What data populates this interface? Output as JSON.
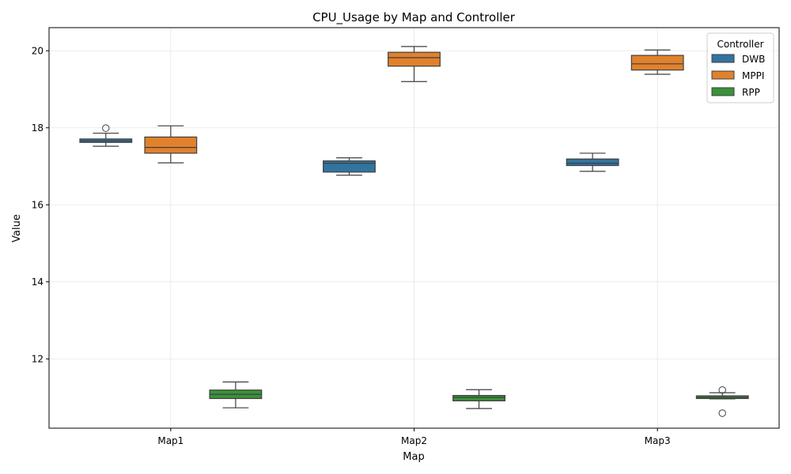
{
  "chart_data": {
    "type": "box",
    "title": "CPU_Usage by Map and Controller",
    "xlabel": "Map",
    "ylabel": "Value",
    "categories": [
      "Map1",
      "Map2",
      "Map3"
    ],
    "ylim": [
      10.2,
      20.6
    ],
    "yticks": [
      "12",
      "14",
      "16",
      "18",
      "20"
    ],
    "grid": true,
    "legend": {
      "title": "Controller",
      "position": "top-right"
    },
    "series": [
      {
        "name": "DWB",
        "color": "#3274a1",
        "boxes": [
          {
            "whislo": 17.52,
            "q1": 17.62,
            "med": 17.66,
            "q3": 17.71,
            "whishi": 17.86,
            "fliers": [
              17.99
            ]
          },
          {
            "whislo": 16.77,
            "q1": 16.85,
            "med": 17.08,
            "q3": 17.14,
            "whishi": 17.22,
            "fliers": []
          },
          {
            "whislo": 16.87,
            "q1": 17.02,
            "med": 17.08,
            "q3": 17.19,
            "whishi": 17.34,
            "fliers": []
          }
        ]
      },
      {
        "name": "MPPI",
        "color": "#e1812c",
        "boxes": [
          {
            "whislo": 17.09,
            "q1": 17.34,
            "med": 17.49,
            "q3": 17.76,
            "whishi": 18.05,
            "fliers": []
          },
          {
            "whislo": 19.2,
            "q1": 19.6,
            "med": 19.82,
            "q3": 19.96,
            "whishi": 20.11,
            "fliers": []
          },
          {
            "whislo": 19.39,
            "q1": 19.5,
            "med": 19.66,
            "q3": 19.88,
            "whishi": 20.02,
            "fliers": []
          }
        ]
      },
      {
        "name": "RPP",
        "color": "#3a923a",
        "boxes": [
          {
            "whislo": 10.73,
            "q1": 10.97,
            "med": 11.08,
            "q3": 11.19,
            "whishi": 11.4,
            "fliers": []
          },
          {
            "whislo": 10.71,
            "q1": 10.91,
            "med": 11.0,
            "q3": 11.05,
            "whishi": 11.2,
            "fliers": []
          },
          {
            "whislo": 10.96,
            "q1": 10.97,
            "med": 11.0,
            "q3": 11.04,
            "whishi": 11.12,
            "fliers": [
              11.19,
              10.59
            ]
          }
        ]
      }
    ]
  }
}
